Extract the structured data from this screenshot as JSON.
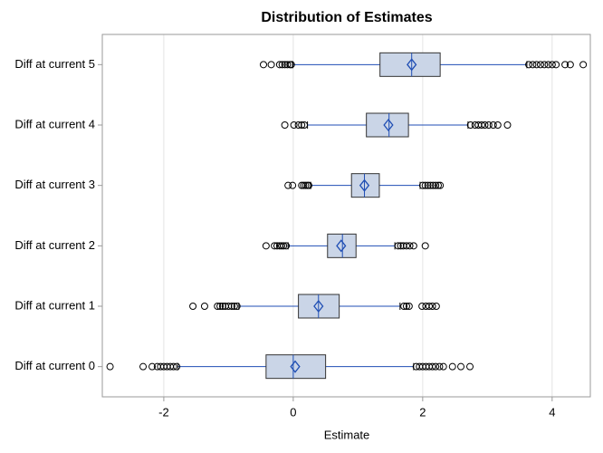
{
  "chart_data": {
    "type": "box",
    "title": "Distribution of Estimates",
    "x_label": "Estimate",
    "categories": [
      "Diff at current 0",
      "Diff at current 1",
      "Diff at current 2",
      "Diff at current 3",
      "Diff at current 4",
      "Diff at current 5"
    ],
    "boxes": [
      {
        "low": -1.78,
        "q1": -0.42,
        "median": 0.0,
        "q3": 0.5,
        "high": 1.86,
        "mean": 0.03,
        "outliers": [
          -2.83,
          -2.32,
          -2.18,
          -2.1,
          -2.05,
          -2.0,
          -1.95,
          -1.9,
          -1.85,
          -1.8,
          1.9,
          1.95,
          2.0,
          2.05,
          2.1,
          2.15,
          2.2,
          2.26,
          2.32,
          2.46,
          2.59,
          2.73
        ]
      },
      {
        "low": -0.84,
        "q1": 0.08,
        "median": 0.39,
        "q3": 0.71,
        "high": 1.65,
        "mean": 0.39,
        "outliers": [
          -1.55,
          -1.37,
          -1.17,
          -1.13,
          -1.09,
          -1.05,
          -1.0,
          -0.95,
          -0.91,
          -0.87,
          1.71,
          1.75,
          1.79,
          1.99,
          2.05,
          2.1,
          2.15,
          2.21
        ]
      },
      {
        "low": -0.08,
        "q1": 0.53,
        "median": 0.76,
        "q3": 0.97,
        "high": 1.57,
        "mean": 0.74,
        "outliers": [
          -0.42,
          -0.29,
          -0.25,
          -0.21,
          -0.18,
          -0.15,
          -0.11,
          1.62,
          1.66,
          1.7,
          1.75,
          1.8,
          1.86,
          2.04
        ]
      },
      {
        "low": 0.27,
        "q1": 0.9,
        "median": 1.1,
        "q3": 1.33,
        "high": 1.96,
        "mean": 1.1,
        "outliers": [
          -0.08,
          -0.01,
          0.13,
          0.16,
          0.19,
          0.22,
          0.24,
          2.0,
          2.04,
          2.08,
          2.12,
          2.16,
          2.2,
          2.24,
          2.27
        ]
      },
      {
        "low": 0.22,
        "q1": 1.13,
        "median": 1.48,
        "q3": 1.78,
        "high": 2.7,
        "mean": 1.47,
        "outliers": [
          -0.13,
          0.01,
          0.08,
          0.13,
          0.17,
          2.74,
          2.81,
          2.86,
          2.91,
          2.96,
          3.02,
          3.09,
          3.16,
          3.31
        ]
      },
      {
        "low": -0.01,
        "q1": 1.34,
        "median": 1.83,
        "q3": 2.27,
        "high": 3.61,
        "mean": 1.83,
        "outliers": [
          -0.46,
          -0.34,
          -0.21,
          -0.17,
          -0.13,
          -0.09,
          -0.05,
          -0.03,
          3.64,
          3.7,
          3.76,
          3.82,
          3.88,
          3.94,
          4.0,
          4.06,
          4.2,
          4.28,
          4.48
        ]
      }
    ],
    "box_color": "#cad5e7",
    "line_color": "#1f4eb4",
    "xlim": [
      -2.95,
      4.59
    ],
    "xticks": [
      -2,
      0,
      2,
      4
    ],
    "grid": true
  }
}
